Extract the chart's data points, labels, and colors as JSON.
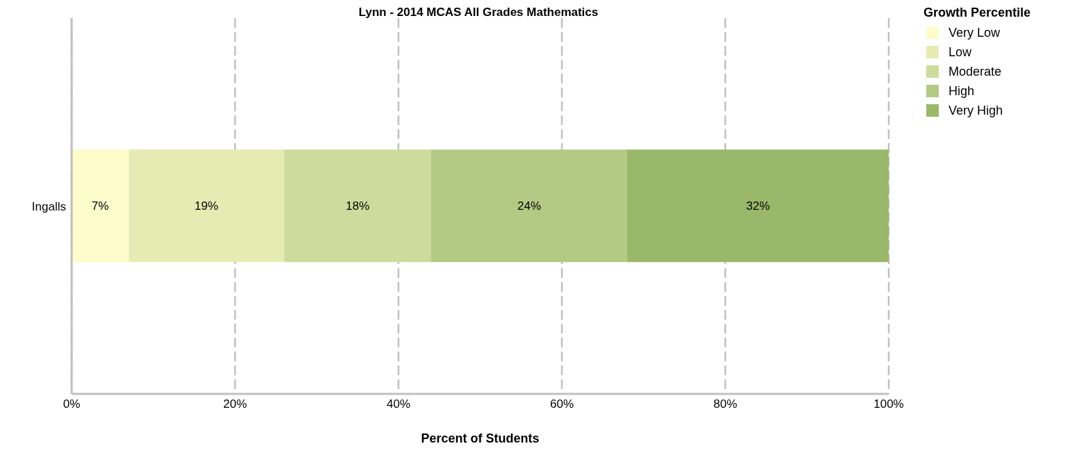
{
  "chart_data": {
    "type": "bar",
    "orientation": "horizontal",
    "stacked": true,
    "title": "Lynn - 2014 MCAS All Grades Mathematics",
    "xlabel": "Percent of Students",
    "legend_title": "Growth Percentile",
    "categories": [
      "Ingalls"
    ],
    "series": [
      {
        "name": "Very Low",
        "color": "#fffccc",
        "values": [
          7
        ],
        "value_labels": [
          "7%"
        ]
      },
      {
        "name": "Low",
        "color": "#e5ebb3",
        "values": [
          19
        ],
        "value_labels": [
          "19%"
        ]
      },
      {
        "name": "Moderate",
        "color": "#cddc9c",
        "values": [
          18
        ],
        "value_labels": [
          "18%"
        ]
      },
      {
        "name": "High",
        "color": "#b3ca85",
        "values": [
          24
        ],
        "value_labels": [
          "24%"
        ]
      },
      {
        "name": "Very High",
        "color": "#9ab86a",
        "values": [
          32
        ],
        "value_labels": [
          "32%"
        ]
      }
    ],
    "xlim": [
      0,
      100
    ],
    "xticks": [
      {
        "value": 0,
        "label": "0%"
      },
      {
        "value": 20,
        "label": "20%"
      },
      {
        "value": 40,
        "label": "40%"
      },
      {
        "value": 60,
        "label": "60%"
      },
      {
        "value": 80,
        "label": "80%"
      },
      {
        "value": 100,
        "label": "100%"
      }
    ],
    "grid": "x",
    "legend": "top right"
  }
}
